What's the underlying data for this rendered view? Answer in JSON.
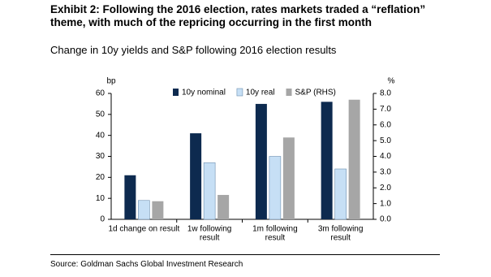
{
  "title": "Exhibit 2: Following the 2016 election, rates markets traded a “reflation” theme, with much of the repricing occurring in the first month",
  "subtitle": "Change in 10y yields and S&P following 2016 election results",
  "source": "Source: Goldman Sachs Global Investment Research",
  "chart_data": {
    "type": "bar",
    "y_label": "bp",
    "y2_label": "%",
    "categories": [
      [
        "1d change on result"
      ],
      [
        "1w following",
        "result"
      ],
      [
        "1m following",
        "result"
      ],
      [
        "3m following",
        "result"
      ]
    ],
    "series": [
      {
        "name": "10y nominal",
        "color": "#0d2a4f",
        "values": [
          21,
          41,
          55,
          56
        ]
      },
      {
        "name": "10y real",
        "color": "#c6dff5",
        "values": [
          9,
          27,
          30,
          24
        ]
      },
      {
        "name": "S&P (RHS)",
        "color": "#a6a6a6",
        "values": [
          1.15,
          1.55,
          5.2,
          7.6
        ],
        "axis": "y2"
      }
    ],
    "ylim": [
      0,
      60
    ],
    "yticks": [
      0,
      10,
      20,
      30,
      40,
      50,
      60
    ],
    "y2lim": [
      0,
      8
    ],
    "y2ticks": [
      {
        "value": 0,
        "label": "0.0"
      },
      {
        "value": 1,
        "label": "1.0"
      },
      {
        "value": 2,
        "label": "2.0"
      },
      {
        "value": 3,
        "label": "3.0"
      },
      {
        "value": 4,
        "label": "4.0"
      },
      {
        "value": 5,
        "label": "5.0"
      },
      {
        "value": 6,
        "label": "6.0"
      },
      {
        "value": 7,
        "label": "7.0"
      },
      {
        "value": 8,
        "label": "8.0"
      }
    ],
    "legend": "top",
    "grid": false
  }
}
